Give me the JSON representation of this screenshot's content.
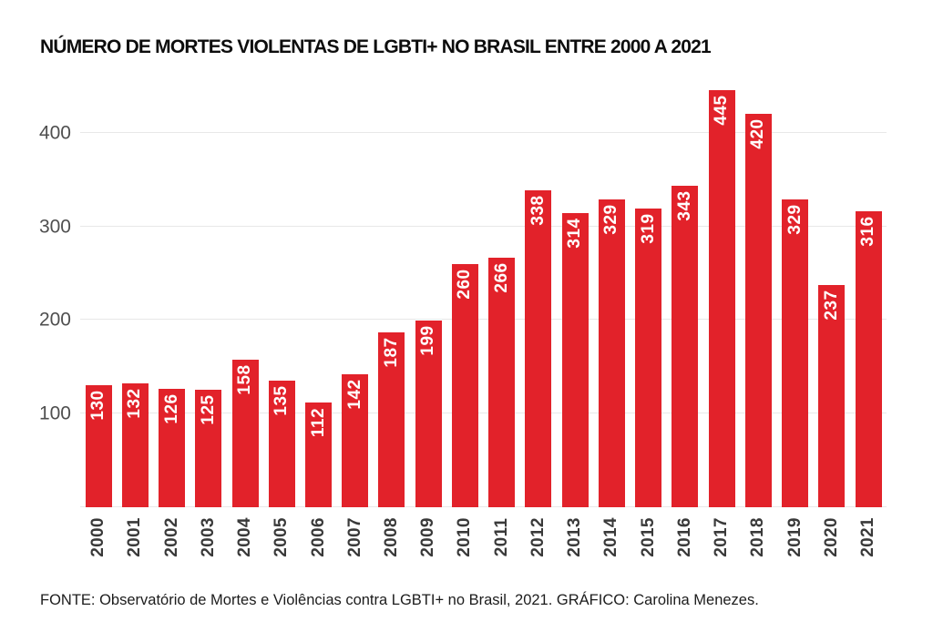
{
  "title": "NÚMERO DE MORTES VIOLENTAS DE LGBTI+ NO BRASIL ENTRE 2000 A 2021",
  "source_note": "FONTE: Observatório de Mortes e Violências contra LGBTI+ no Brasil, 2021. GRÁFICO: Carolina Menezes.",
  "colors": {
    "background": "#ffffff",
    "bar": "#e2222a",
    "grid": "#e8e8e8",
    "axis_text": "#4f4f4f",
    "year_text": "#3a3a3a",
    "value_text": "#ffffff",
    "title_text": "#0d0d0d",
    "note_text": "#1c1c1c"
  },
  "chart_data": {
    "type": "bar",
    "title": "NÚMERO DE MORTES VIOLENTAS DE LGBTI+ NO BRASIL ENTRE 2000 A 2021",
    "categories": [
      "2000",
      "2001",
      "2002",
      "2003",
      "2004",
      "2005",
      "2006",
      "2007",
      "2008",
      "2009",
      "2010",
      "2011",
      "2012",
      "2013",
      "2014",
      "2015",
      "2016",
      "2017",
      "2018",
      "2019",
      "2020",
      "2021"
    ],
    "values": [
      130,
      132,
      126,
      125,
      158,
      135,
      112,
      142,
      187,
      199,
      260,
      266,
      338,
      314,
      329,
      319,
      343,
      445,
      420,
      329,
      237,
      316
    ],
    "xlabel": "",
    "ylabel": "",
    "ylim": [
      0,
      460
    ],
    "yticks": [
      100,
      200,
      300,
      400
    ],
    "grid": "horizontal",
    "legend": "none",
    "value_labels": "inside bar top, rotated 90° reading bottom-to-top, white",
    "x_tick_labels": "rotated 90° reading bottom-to-top"
  }
}
